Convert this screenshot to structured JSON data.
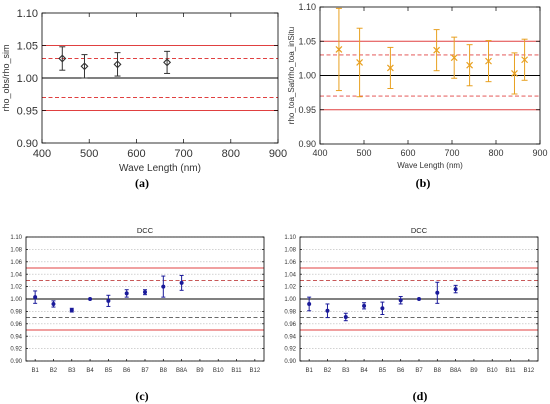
{
  "captions": [
    "(a)",
    "(b)",
    "(c)",
    "(d)"
  ],
  "chart_data": [
    {
      "type": "scatter",
      "title": "",
      "xlabel": "Wave Length (nm)",
      "ylabel": "rho_obs/rho_sim",
      "xlim": [
        400,
        900
      ],
      "ylim": [
        0.9,
        1.1
      ],
      "xticks": [
        "400",
        "500",
        "600",
        "700",
        "800",
        "900"
      ],
      "yticks": [
        "0.90",
        "0.95",
        "1.00",
        "1.05",
        "1.10"
      ],
      "marker": "diamond",
      "marker_color": "#333333",
      "series": [
        {
          "x": [
            443,
            490,
            560,
            665
          ],
          "y": [
            1.03,
            1.018,
            1.021,
            1.024
          ],
          "err": [
            0.018,
            0.018,
            0.018,
            0.017
          ]
        }
      ],
      "reference_lines": [
        {
          "y": 1.0,
          "style": "solid",
          "color": "#000000"
        },
        {
          "y": 1.05,
          "style": "solid",
          "color": "#e04040"
        },
        {
          "y": 0.95,
          "style": "solid",
          "color": "#e04040"
        },
        {
          "y": 1.03,
          "style": "dashed",
          "color": "#e04040"
        },
        {
          "y": 0.97,
          "style": "dashed",
          "color": "#e04040"
        }
      ],
      "grid": false
    },
    {
      "type": "scatter",
      "title": "",
      "xlabel": "Wave Length (nm)",
      "ylabel": "rho_toa_Sat/rho_toa_inSitu",
      "xlim": [
        400,
        900
      ],
      "ylim": [
        0.9,
        1.1
      ],
      "xticks": [
        "400",
        "500",
        "600",
        "700",
        "800",
        "900"
      ],
      "yticks": [
        "0.90",
        "0.95",
        "1.00",
        "1.05",
        "1.10"
      ],
      "marker": "cross",
      "marker_color": "#e8a020",
      "series": [
        {
          "x": [
            443,
            490,
            560,
            665,
            705,
            740,
            783,
            842,
            865
          ],
          "y": [
            1.038,
            1.019,
            1.011,
            1.037,
            1.026,
            1.015,
            1.021,
            1.003,
            1.023
          ],
          "err": [
            0.06,
            0.05,
            0.03,
            0.03,
            0.03,
            0.03,
            0.03,
            0.03,
            0.03
          ]
        }
      ],
      "reference_lines": [
        {
          "y": 1.0,
          "style": "solid",
          "color": "#000000"
        },
        {
          "y": 1.05,
          "style": "solid",
          "color": "#e04040"
        },
        {
          "y": 0.95,
          "style": "solid",
          "color": "#e04040"
        },
        {
          "y": 1.03,
          "style": "dashed",
          "color": "#e04040"
        },
        {
          "y": 0.97,
          "style": "dashed",
          "color": "#e04040"
        }
      ],
      "grid": false
    },
    {
      "type": "scatter",
      "title": "DCC",
      "xlabel": "",
      "ylabel": "",
      "ylim": [
        0.9,
        1.1
      ],
      "categories": [
        "B1",
        "B2",
        "B3",
        "B4",
        "B5",
        "B6",
        "B7",
        "B8",
        "B8A",
        "B9",
        "B10",
        "B11",
        "B12"
      ],
      "yticks": [
        "0.90",
        "0.92",
        "0.94",
        "0.96",
        "0.98",
        "1.00",
        "1.02",
        "1.04",
        "1.06",
        "1.08",
        "1.10"
      ],
      "marker": "circle",
      "marker_color": "#1a1a9a",
      "series": [
        {
          "y": [
            1.003,
            0.992,
            0.982,
            1.0,
            0.997,
            1.009,
            1.011,
            1.02,
            1.026,
            null,
            null,
            null,
            null
          ],
          "err": [
            0.01,
            0.005,
            0.003,
            0.0,
            0.009,
            0.006,
            0.004,
            0.017,
            0.012,
            null,
            null,
            null,
            null
          ]
        }
      ],
      "reference_lines": [
        {
          "y": 1.0,
          "style": "solid",
          "color": "#000000"
        },
        {
          "y": 1.05,
          "style": "solid",
          "color": "#e04040"
        },
        {
          "y": 0.95,
          "style": "solid",
          "color": "#e04040"
        },
        {
          "y": 1.03,
          "style": "dashed",
          "color": "#c04040"
        },
        {
          "y": 0.97,
          "style": "dashed",
          "color": "#555555"
        }
      ],
      "grid": true
    },
    {
      "type": "scatter",
      "title": "DCC",
      "xlabel": "",
      "ylabel": "",
      "ylim": [
        0.9,
        1.1
      ],
      "categories": [
        "B1",
        "B2",
        "B3",
        "B4",
        "B5",
        "B6",
        "B7",
        "B8",
        "B8A",
        "B9",
        "B10",
        "B11",
        "B12"
      ],
      "yticks": [
        "0.90",
        "0.92",
        "0.94",
        "0.96",
        "0.98",
        "1.00",
        "1.02",
        "1.04",
        "1.06",
        "1.08",
        "1.10"
      ],
      "marker": "circle",
      "marker_color": "#1a1a9a",
      "series": [
        {
          "y": [
            0.992,
            0.981,
            0.971,
            0.989,
            0.985,
            0.998,
            1.0,
            1.01,
            1.016,
            null,
            null,
            null,
            null
          ],
          "err": [
            0.011,
            0.011,
            0.006,
            0.005,
            0.01,
            0.006,
            0.0,
            0.017,
            0.006,
            null,
            null,
            null,
            null
          ]
        }
      ],
      "reference_lines": [
        {
          "y": 1.0,
          "style": "solid",
          "color": "#000000"
        },
        {
          "y": 1.05,
          "style": "solid",
          "color": "#e04040"
        },
        {
          "y": 0.95,
          "style": "solid",
          "color": "#e04040"
        },
        {
          "y": 1.03,
          "style": "dashed",
          "color": "#c04040"
        },
        {
          "y": 0.97,
          "style": "dashed",
          "color": "#555555"
        }
      ],
      "grid": true
    }
  ]
}
